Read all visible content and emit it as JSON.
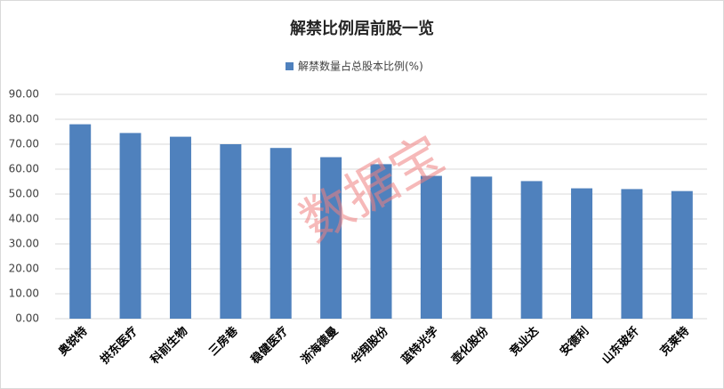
{
  "chart_data": {
    "type": "bar",
    "title": "解禁比例居前股一览",
    "legend": "解禁数量占总股本比例(%)",
    "watermark": "数据宝",
    "categories": [
      "奥锐特",
      "拱东医疗",
      "科前生物",
      "三房巷",
      "稳健医疗",
      "浙海德曼",
      "华翔股份",
      "蓝特光学",
      "壶化股份",
      "竞业达",
      "安德利",
      "山东玻纤",
      "克莱特"
    ],
    "values": [
      78,
      74.5,
      73,
      70,
      68.5,
      64.8,
      62,
      57.3,
      57,
      55.2,
      52.3,
      52,
      51.2
    ],
    "color": "#4f81bd",
    "ylim": [
      0,
      90
    ],
    "yticks": [
      {
        "value": 0,
        "label": "0.00"
      },
      {
        "value": 10,
        "label": "10.00"
      },
      {
        "value": 20,
        "label": "20.00"
      },
      {
        "value": 30,
        "label": "30.00"
      },
      {
        "value": 40,
        "label": "40.00"
      },
      {
        "value": 50,
        "label": "50.00"
      },
      {
        "value": 60,
        "label": "60.00"
      },
      {
        "value": 70,
        "label": "70.00"
      },
      {
        "value": 80,
        "label": "80.00"
      },
      {
        "value": 90,
        "label": "90.00"
      }
    ],
    "grid": true
  }
}
